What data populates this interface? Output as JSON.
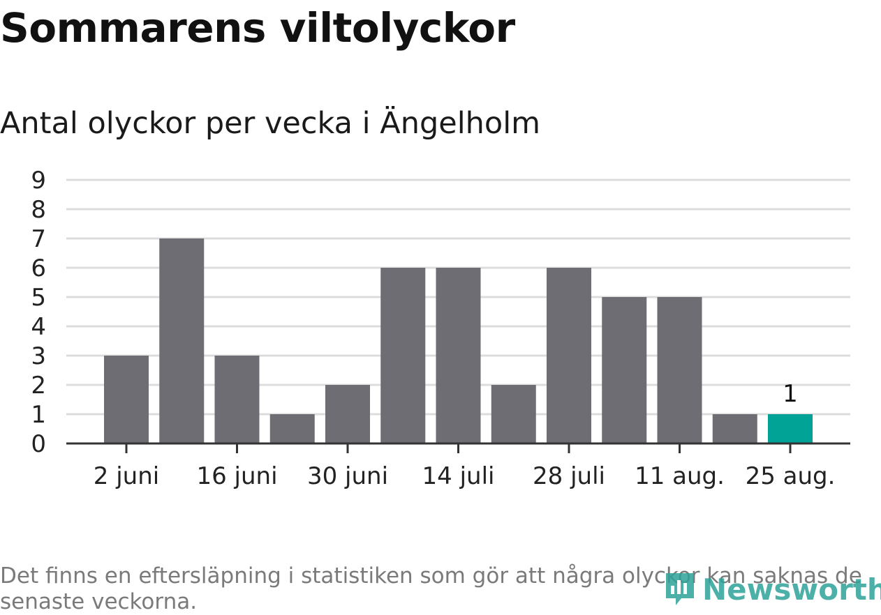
{
  "title": "Sommarens viltolyckor",
  "subtitle": "Antal olyckor per vecka i Ängelholm",
  "footnote": "Det finns en eftersläpning i statistiken som gör att några olyckor kan saknas de senaste veckorna.",
  "brand": {
    "name": "Newsworthy",
    "icon": "newsworthy-logo-icon"
  },
  "colors": {
    "bar": "#6e6d73",
    "highlight": "#00a396",
    "grid": "#dcdcdc",
    "axis": "#333333",
    "text": "#222222"
  },
  "chart_data": {
    "type": "bar",
    "categories": [
      "2 juni",
      "",
      "16 juni",
      "",
      "30 juni",
      "",
      "14 juli",
      "",
      "28 juli",
      "",
      "11 aug.",
      "",
      "25 aug."
    ],
    "values": [
      3,
      7,
      3,
      1,
      2,
      6,
      6,
      2,
      6,
      5,
      5,
      1,
      1
    ],
    "highlight_index": 12,
    "highlight_label": "1",
    "yticks": [
      0,
      1,
      2,
      3,
      4,
      5,
      6,
      7,
      8,
      9
    ],
    "ylim": [
      0,
      9
    ],
    "grid": true
  }
}
